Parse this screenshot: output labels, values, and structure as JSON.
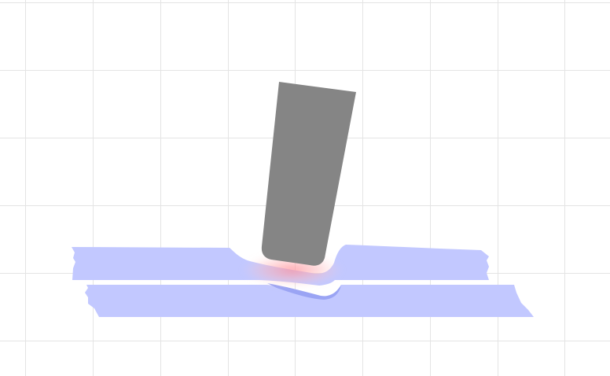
{
  "scene": {
    "colors": {
      "background": "#ffffff",
      "grid": "#e4e4e4",
      "tool": "#858585",
      "sheet_top": "#c2c8ff",
      "sheet_bottom": "#c2c8ff",
      "sheet_dent": "#9aa4f4",
      "heat_glow": "#ff9aa0"
    },
    "grid_lines": true
  }
}
